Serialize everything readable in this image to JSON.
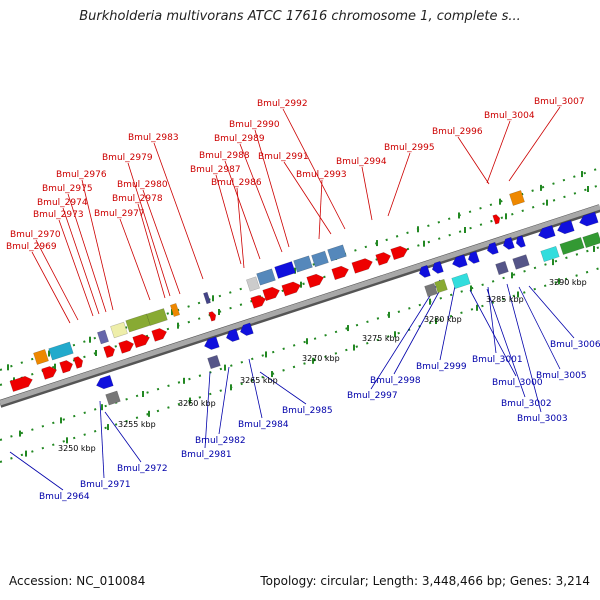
{
  "title": "Burkholderia multivorans ATCC 17616 chromosome 1, complete s...",
  "accession_text": "Accession: NC_010084",
  "summary_text": "Topology: circular; Length: 3,448,466 bp; Genes: 3,214",
  "colors": {
    "forward_gene": "#ee0000",
    "reverse_gene": "#1010dd",
    "forward_label": "#cc0000",
    "reverse_label": "#0000aa",
    "backbone": "#999999",
    "tick": "#228822"
  },
  "scale": {
    "ticks": [
      {
        "label": "3250 kbp"
      },
      {
        "label": "3255 kbp"
      },
      {
        "label": "3260 kbp"
      },
      {
        "label": "3265 kbp"
      },
      {
        "label": "3270 kbp"
      },
      {
        "label": "3275 kbp"
      },
      {
        "label": "3280 kbp"
      },
      {
        "label": "3285 kbp"
      },
      {
        "label": "3290 kbp"
      }
    ]
  },
  "forward_genes": [
    "Bmul_2969",
    "Bmul_2970",
    "Bmul_2973",
    "Bmul_2974",
    "Bmul_2975",
    "Bmul_2976",
    "Bmul_2977",
    "Bmul_2978",
    "Bmul_2979",
    "Bmul_2980",
    "Bmul_2983",
    "Bmul_2986",
    "Bmul_2987",
    "Bmul_2988",
    "Bmul_2989",
    "Bmul_2990",
    "Bmul_2991",
    "Bmul_2992",
    "Bmul_2993",
    "Bmul_2994",
    "Bmul_2995",
    "Bmul_2996",
    "Bmul_3004",
    "Bmul_3007"
  ],
  "reverse_genes": [
    "Bmul_2964",
    "Bmul_2971",
    "Bmul_2972",
    "Bmul_2981",
    "Bmul_2982",
    "Bmul_2984",
    "Bmul_2985",
    "Bmul_2997",
    "Bmul_2998",
    "Bmul_2999",
    "Bmul_3000",
    "Bmul_3001",
    "Bmul_3002",
    "Bmul_3003",
    "Bmul_3005",
    "Bmul_3006"
  ]
}
